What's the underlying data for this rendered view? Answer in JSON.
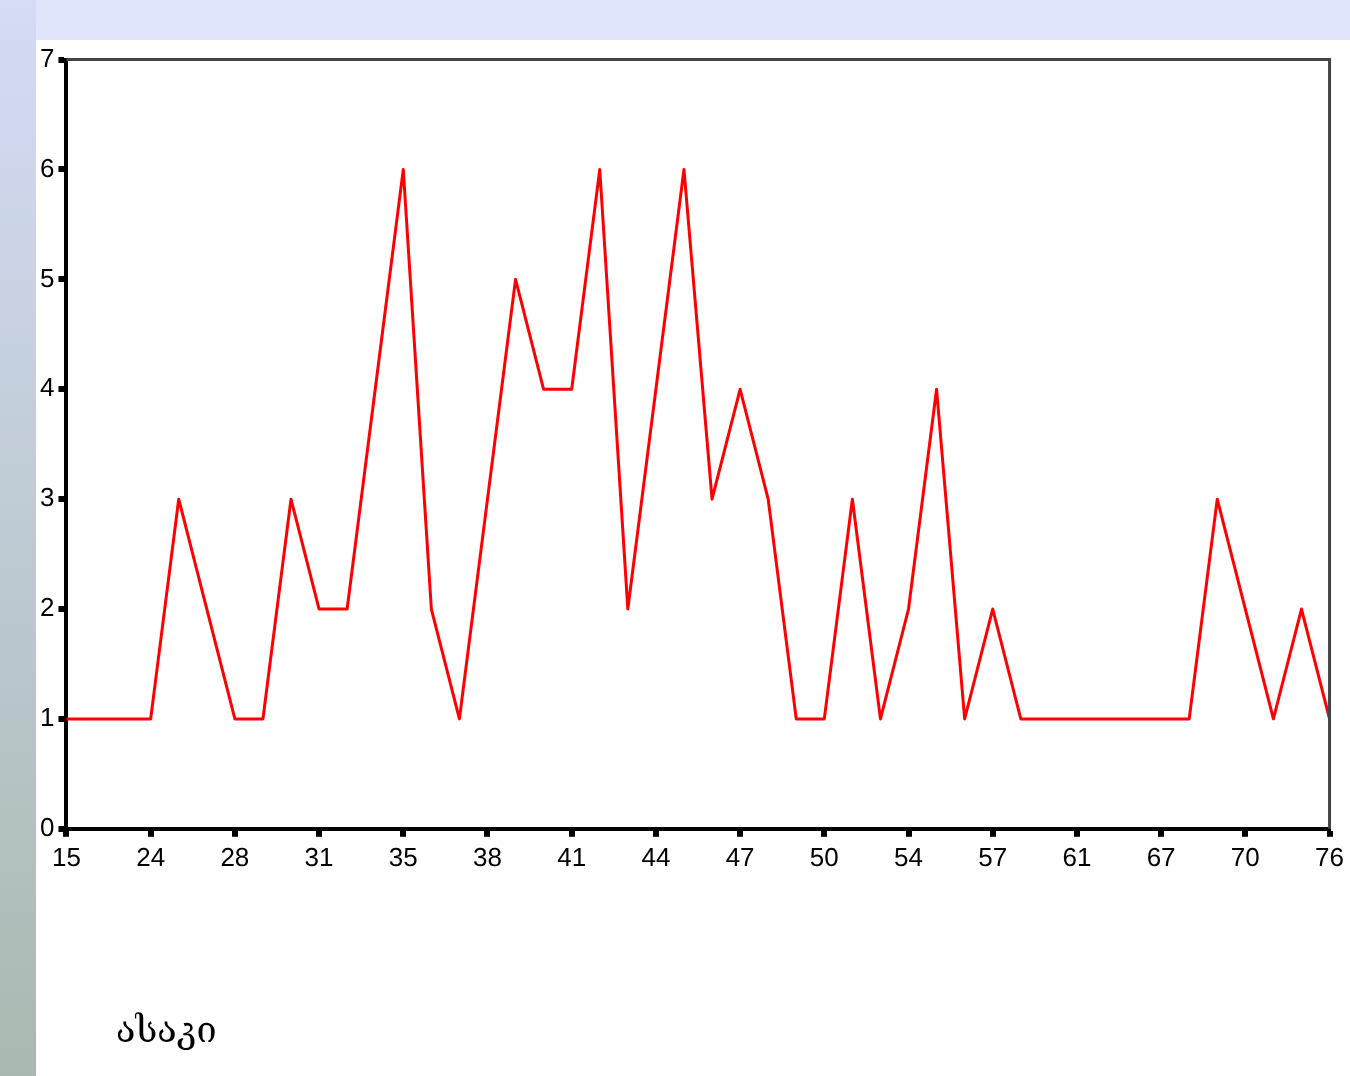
{
  "chart_data": {
    "type": "line",
    "xlabel": "ასაკი",
    "categories": [
      "15",
      null,
      null,
      "24",
      null,
      null,
      "28",
      null,
      null,
      "31",
      null,
      null,
      "35",
      null,
      null,
      "38",
      null,
      null,
      "41",
      null,
      null,
      "44",
      null,
      null,
      "47",
      null,
      null,
      "50",
      null,
      null,
      "54",
      null,
      null,
      "57",
      null,
      null,
      "61",
      null,
      null,
      "67",
      null,
      null,
      "70",
      null,
      null,
      "76"
    ],
    "series": [
      {
        "color": "#ff0000",
        "values": [
          1,
          1,
          1,
          1,
          3,
          2,
          1,
          1,
          3,
          2,
          2,
          4,
          6,
          2,
          1,
          3,
          5,
          4,
          4,
          6,
          2,
          4,
          6,
          3,
          4,
          3,
          1,
          1,
          3,
          1,
          2,
          4,
          1,
          2,
          1,
          1,
          1,
          1,
          1,
          1,
          1,
          3,
          2,
          1,
          2,
          1
        ]
      }
    ],
    "ylim": [
      0,
      7
    ],
    "yticks": [
      0,
      1,
      2,
      3,
      4,
      5,
      6,
      7
    ],
    "grid": false,
    "legend": false,
    "marker": "none",
    "line_style": "solid"
  }
}
